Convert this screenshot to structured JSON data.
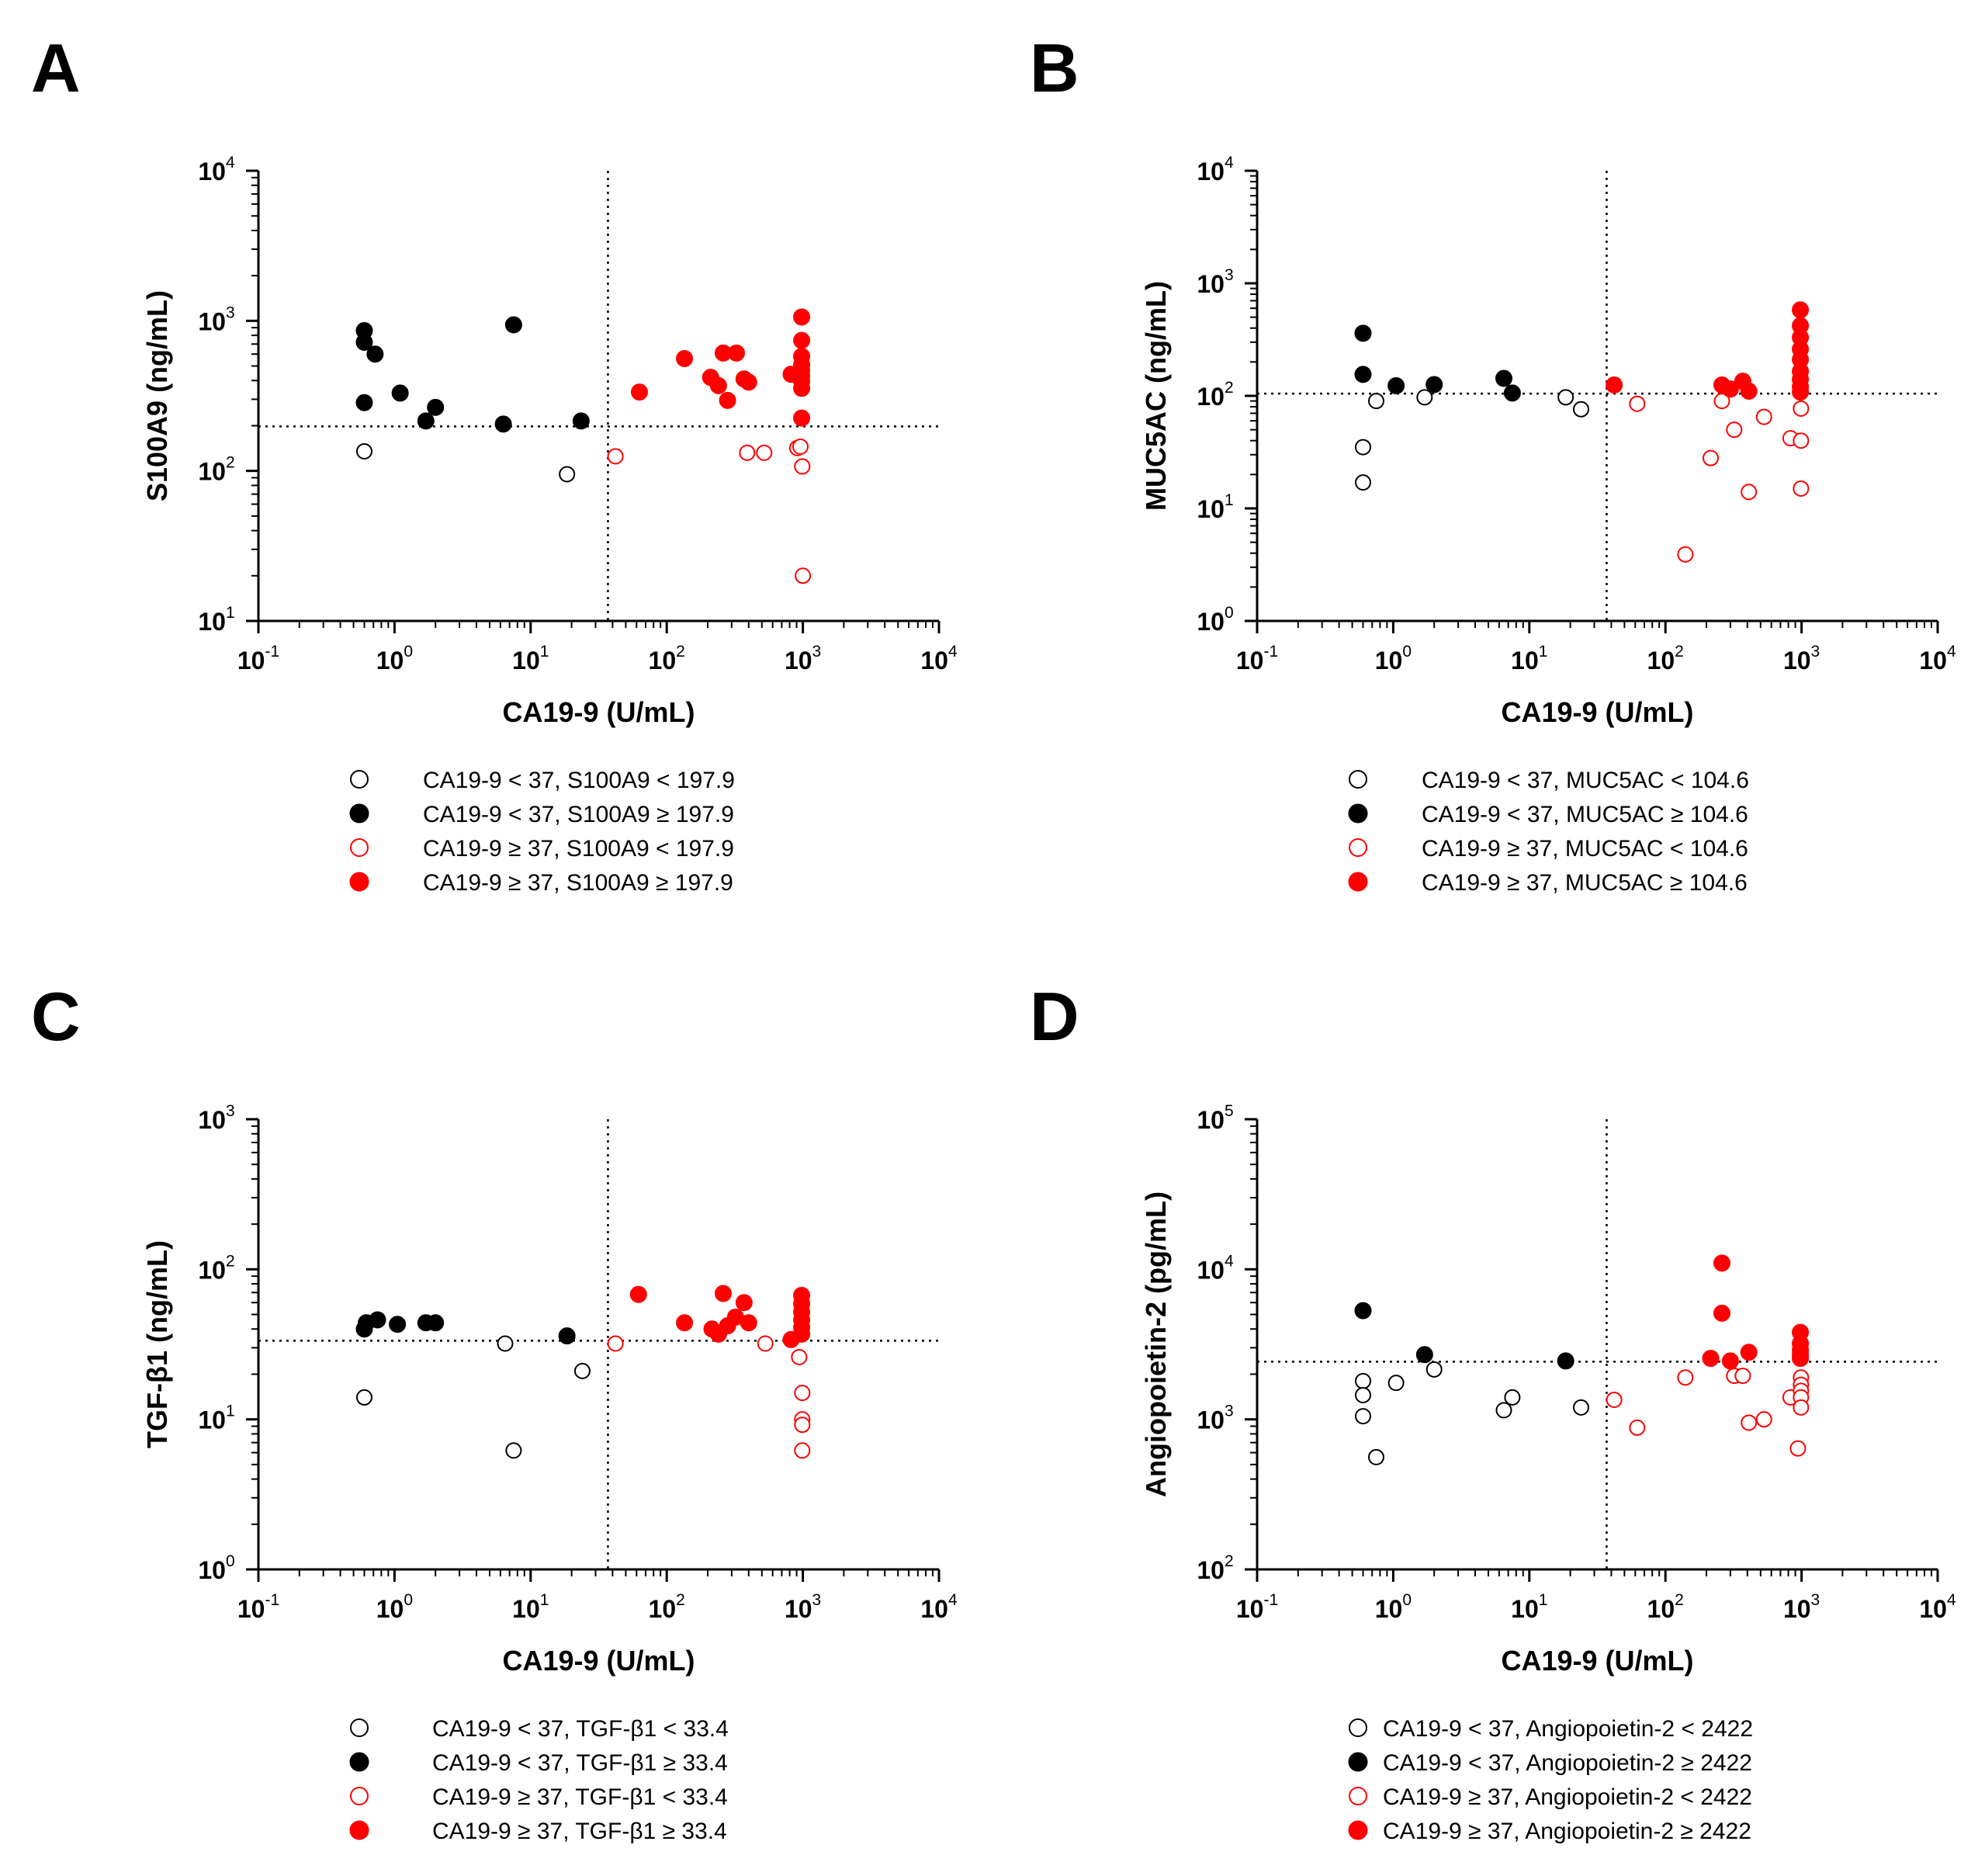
{
  "figure": {
    "chart_data": [
      {
        "type": "scatter",
        "panel_letter": "A",
        "xlabel": "CA19-9 (U/mL)",
        "ylabel": "S100A9 (ng/mL)",
        "x_scale": "log",
        "y_scale": "log",
        "xlim": [
          0.1,
          10000
        ],
        "ylim": [
          10,
          10000
        ],
        "x_ticks": [
          {
            "b": "10",
            "e": "-1"
          },
          {
            "b": "10",
            "e": "0"
          },
          {
            "b": "10",
            "e": "1"
          },
          {
            "b": "10",
            "e": "2"
          },
          {
            "b": "10",
            "e": "3"
          },
          {
            "b": "10",
            "e": "4"
          }
        ],
        "y_ticks": [
          {
            "b": "10",
            "e": "1"
          },
          {
            "b": "10",
            "e": "2"
          },
          {
            "b": "10",
            "e": "3"
          },
          {
            "b": "10",
            "e": "4"
          }
        ],
        "cutoff_x": 37,
        "cutoff_y": 197.9,
        "series": [
          {
            "name": "CA19-9 < 37, S100A9 < 197.9",
            "color": "#000000",
            "filled": false,
            "points": [
              [
                0.6,
                135
              ],
              [
                18.5,
                95
              ]
            ]
          },
          {
            "name": "CA19-9 < 37, S100A9 ≥ 197.9",
            "color": "#000000",
            "filled": true,
            "points": [
              [
                0.6,
                860
              ],
              [
                0.6,
                720
              ],
              [
                0.72,
                600
              ],
              [
                0.6,
                285
              ],
              [
                1.1,
                330
              ],
              [
                1.7,
                215
              ],
              [
                2.0,
                265
              ],
              [
                6.3,
                205
              ],
              [
                7.5,
                940
              ],
              [
                23.5,
                215
              ]
            ]
          },
          {
            "name": "CA19-9 ≥ 37, S100A9 < 197.9",
            "color": "#ff0000",
            "filled": false,
            "points": [
              [
                42,
                125
              ],
              [
                390,
                132
              ],
              [
                520,
                132
              ],
              [
                910,
                142
              ],
              [
                960,
                145
              ],
              [
                990,
                107
              ],
              [
                1000,
                20
              ]
            ]
          },
          {
            "name": "CA19-9 ≥ 37, S100A9 ≥ 197.9",
            "color": "#ff0000",
            "filled": true,
            "points": [
              [
                63,
                335
              ],
              [
                135,
                560
              ],
              [
                210,
                420
              ],
              [
                240,
                370
              ],
              [
                260,
                610
              ],
              [
                280,
                295
              ],
              [
                325,
                610
              ],
              [
                370,
                410
              ],
              [
                400,
                390
              ],
              [
                820,
                440
              ],
              [
                980,
                1060
              ],
              [
                980,
                740
              ],
              [
                980,
                580
              ],
              [
                980,
                510
              ],
              [
                980,
                470
              ],
              [
                980,
                430
              ],
              [
                980,
                395
              ],
              [
                980,
                355
              ],
              [
                980,
                225
              ]
            ]
          }
        ]
      },
      {
        "type": "scatter",
        "panel_letter": "B",
        "xlabel": "CA19-9 (U/mL)",
        "ylabel": "MUC5AC (ng/mL)",
        "x_scale": "log",
        "y_scale": "log",
        "xlim": [
          0.1,
          10000
        ],
        "ylim": [
          1,
          10000
        ],
        "x_ticks": [
          {
            "b": "10",
            "e": "-1"
          },
          {
            "b": "10",
            "e": "0"
          },
          {
            "b": "10",
            "e": "1"
          },
          {
            "b": "10",
            "e": "2"
          },
          {
            "b": "10",
            "e": "3"
          },
          {
            "b": "10",
            "e": "4"
          }
        ],
        "y_ticks": [
          {
            "b": "10",
            "e": "0"
          },
          {
            "b": "10",
            "e": "1"
          },
          {
            "b": "10",
            "e": "2"
          },
          {
            "b": "10",
            "e": "3"
          },
          {
            "b": "10",
            "e": "4"
          }
        ],
        "cutoff_x": 37,
        "cutoff_y": 104.6,
        "series": [
          {
            "name": "CA19-9 < 37, MUC5AC < 104.6",
            "color": "#000000",
            "filled": false,
            "points": [
              [
                0.6,
                35
              ],
              [
                0.6,
                17
              ],
              [
                0.75,
                90
              ],
              [
                1.7,
                97
              ],
              [
                18.5,
                97
              ],
              [
                24,
                76
              ]
            ]
          },
          {
            "name": "CA19-9 < 37, MUC5AC ≥ 104.6",
            "color": "#000000",
            "filled": true,
            "points": [
              [
                0.6,
                360
              ],
              [
                0.6,
                155
              ],
              [
                1.05,
                123
              ],
              [
                2.0,
                126
              ],
              [
                6.5,
                143
              ],
              [
                7.5,
                106
              ]
            ]
          },
          {
            "name": "CA19-9 ≥ 37, MUC5AC < 104.6",
            "color": "#ff0000",
            "filled": false,
            "points": [
              [
                62,
                85
              ],
              [
                140,
                3.9
              ],
              [
                215,
                28
              ],
              [
                260,
                90
              ],
              [
                320,
                50
              ],
              [
                410,
                14
              ],
              [
                530,
                65
              ],
              [
                830,
                42
              ],
              [
                990,
                77
              ],
              [
                990,
                40
              ],
              [
                990,
                15
              ]
            ]
          },
          {
            "name": "CA19-9 ≥ 37, MUC5AC ≥ 104.6",
            "color": "#ff0000",
            "filled": true,
            "points": [
              [
                42,
                125
              ],
              [
                260,
                125
              ],
              [
                300,
                115
              ],
              [
                370,
                135
              ],
              [
                410,
                110
              ],
              [
                980,
                580
              ],
              [
                980,
                420
              ],
              [
                980,
                330
              ],
              [
                980,
                260
              ],
              [
                980,
                210
              ],
              [
                980,
                165
              ],
              [
                980,
                140
              ],
              [
                980,
                120
              ],
              [
                980,
                108
              ]
            ]
          }
        ]
      },
      {
        "type": "scatter",
        "panel_letter": "C",
        "xlabel": "CA19-9 (U/mL)",
        "ylabel": "TGF-β1 (ng/mL)",
        "x_scale": "log",
        "y_scale": "log",
        "xlim": [
          0.1,
          10000
        ],
        "ylim": [
          1,
          1000
        ],
        "x_ticks": [
          {
            "b": "10",
            "e": "-1"
          },
          {
            "b": "10",
            "e": "0"
          },
          {
            "b": "10",
            "e": "1"
          },
          {
            "b": "10",
            "e": "2"
          },
          {
            "b": "10",
            "e": "3"
          },
          {
            "b": "10",
            "e": "4"
          }
        ],
        "y_ticks": [
          {
            "b": "10",
            "e": "0"
          },
          {
            "b": "10",
            "e": "1"
          },
          {
            "b": "10",
            "e": "2"
          },
          {
            "b": "10",
            "e": "3"
          }
        ],
        "cutoff_x": 37,
        "cutoff_y": 33.4,
        "series": [
          {
            "name": "CA19-9 < 37, TGF-β1 < 33.4",
            "color": "#000000",
            "filled": false,
            "points": [
              [
                0.6,
                14
              ],
              [
                6.5,
                32
              ],
              [
                7.5,
                6.2
              ],
              [
                24,
                21
              ]
            ]
          },
          {
            "name": "CA19-9 < 37, TGF-β1 ≥ 33.4",
            "color": "#000000",
            "filled": true,
            "points": [
              [
                0.6,
                40
              ],
              [
                0.62,
                44
              ],
              [
                0.75,
                46
              ],
              [
                1.05,
                43
              ],
              [
                1.7,
                44
              ],
              [
                2.0,
                44
              ],
              [
                18.5,
                36
              ]
            ]
          },
          {
            "name": "CA19-9 ≥ 37, TGF-β1 < 33.4",
            "color": "#ff0000",
            "filled": false,
            "points": [
              [
                42,
                32
              ],
              [
                530,
                32
              ],
              [
                940,
                26
              ],
              [
                990,
                15
              ],
              [
                990,
                10
              ],
              [
                990,
                9.2
              ],
              [
                990,
                6.2
              ]
            ]
          },
          {
            "name": "CA19-9 ≥ 37, TGF-β1 ≥ 33.4",
            "color": "#ff0000",
            "filled": true,
            "points": [
              [
                62,
                68
              ],
              [
                135,
                44
              ],
              [
                215,
                40
              ],
              [
                240,
                37
              ],
              [
                260,
                69
              ],
              [
                280,
                42
              ],
              [
                320,
                48
              ],
              [
                370,
                60
              ],
              [
                400,
                44
              ],
              [
                820,
                34
              ],
              [
                980,
                67
              ],
              [
                980,
                59
              ],
              [
                980,
                52
              ],
              [
                980,
                46
              ],
              [
                980,
                41
              ],
              [
                980,
                37
              ]
            ]
          }
        ]
      },
      {
        "type": "scatter",
        "panel_letter": "D",
        "xlabel": "CA19-9 (U/mL)",
        "ylabel": "Angiopoietin-2 (pg/mL)",
        "x_scale": "log",
        "y_scale": "log",
        "xlim": [
          0.1,
          10000
        ],
        "ylim": [
          100,
          100000
        ],
        "x_ticks": [
          {
            "b": "10",
            "e": "-1"
          },
          {
            "b": "10",
            "e": "0"
          },
          {
            "b": "10",
            "e": "1"
          },
          {
            "b": "10",
            "e": "2"
          },
          {
            "b": "10",
            "e": "3"
          },
          {
            "b": "10",
            "e": "4"
          }
        ],
        "y_ticks": [
          {
            "b": "10",
            "e": "2"
          },
          {
            "b": "10",
            "e": "3"
          },
          {
            "b": "10",
            "e": "4"
          },
          {
            "b": "10",
            "e": "5"
          }
        ],
        "cutoff_x": 37,
        "cutoff_y": 2422,
        "series": [
          {
            "name": "CA19-9 < 37, Angiopoietin-2 < 2422",
            "color": "#000000",
            "filled": false,
            "points": [
              [
                0.6,
                1800
              ],
              [
                0.6,
                1450
              ],
              [
                0.6,
                1050
              ],
              [
                0.75,
                560
              ],
              [
                1.05,
                1750
              ],
              [
                2.0,
                2150
              ],
              [
                6.5,
                1150
              ],
              [
                7.5,
                1400
              ],
              [
                24,
                1200
              ]
            ]
          },
          {
            "name": "CA19-9 < 37, Angiopoietin-2 ≥ 2422",
            "color": "#000000",
            "filled": true,
            "points": [
              [
                0.6,
                5300
              ],
              [
                1.7,
                2700
              ],
              [
                18.5,
                2450
              ]
            ]
          },
          {
            "name": "CA19-9 ≥ 37, Angiopoietin-2 < 2422",
            "color": "#ff0000",
            "filled": false,
            "points": [
              [
                42,
                1350
              ],
              [
                62,
                880
              ],
              [
                140,
                1900
              ],
              [
                320,
                1950
              ],
              [
                370,
                1950
              ],
              [
                410,
                950
              ],
              [
                530,
                1000
              ],
              [
                830,
                1400
              ],
              [
                940,
                640
              ],
              [
                990,
                1900
              ],
              [
                990,
                1700
              ],
              [
                990,
                1550
              ],
              [
                990,
                1400
              ],
              [
                990,
                1200
              ]
            ]
          },
          {
            "name": "CA19-9 ≥ 37, Angiopoietin-2 ≥ 2422",
            "color": "#ff0000",
            "filled": true,
            "points": [
              [
                215,
                2550
              ],
              [
                260,
                11000
              ],
              [
                260,
                5100
              ],
              [
                300,
                2450
              ],
              [
                410,
                2800
              ],
              [
                980,
                3800
              ],
              [
                980,
                3200
              ],
              [
                980,
                2900
              ],
              [
                980,
                2700
              ],
              [
                980,
                2550
              ]
            ]
          }
        ]
      }
    ]
  }
}
